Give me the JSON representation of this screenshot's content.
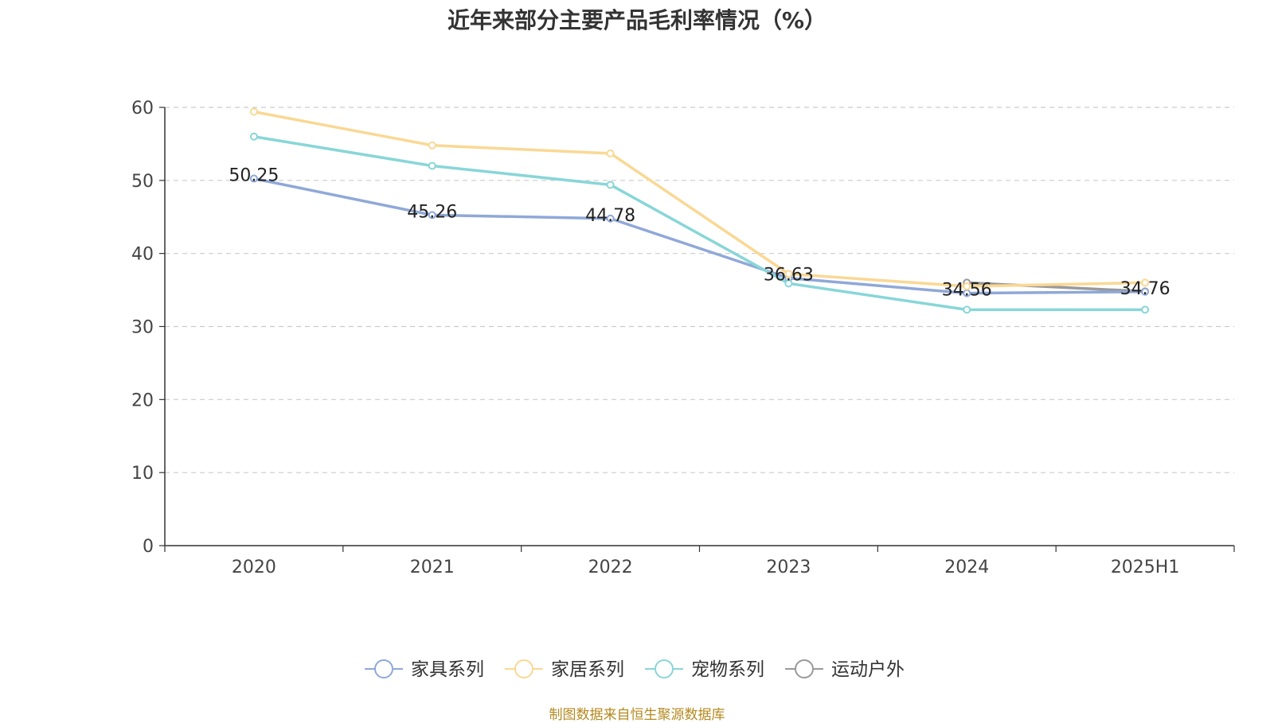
{
  "title": "近年来部分主要产品毛利率情况（%）",
  "source": "制图数据来自恒生聚源数据库",
  "chart_data": {
    "type": "line",
    "title": "近年来部分主要产品毛利率情况（%）",
    "categories": [
      "2020",
      "2021",
      "2022",
      "2023",
      "2024",
      "2025H1"
    ],
    "ylim": [
      0,
      60
    ],
    "yticks": [
      0,
      10,
      20,
      30,
      40,
      50,
      60
    ],
    "grid": true,
    "legend_position": "bottom",
    "series": [
      {
        "name": "家具系列",
        "color": "#8fa8d8",
        "values": [
          50.25,
          45.26,
          44.78,
          36.63,
          34.56,
          34.76
        ],
        "labels": [
          "50.25",
          "45.26",
          "44.78",
          "36.63",
          "34.56",
          "34.76"
        ]
      },
      {
        "name": "家居系列",
        "color": "#fad894",
        "values": [
          59.4,
          54.8,
          53.7,
          37.2,
          35.5,
          36.0
        ],
        "labels": []
      },
      {
        "name": "宠物系列",
        "color": "#88d6d8",
        "values": [
          56.0,
          52.0,
          49.4,
          35.9,
          32.3,
          32.3
        ],
        "labels": []
      },
      {
        "name": "运动户外",
        "color": "#999999",
        "values": [
          null,
          null,
          null,
          null,
          36.0,
          34.8
        ],
        "labels": []
      }
    ]
  }
}
